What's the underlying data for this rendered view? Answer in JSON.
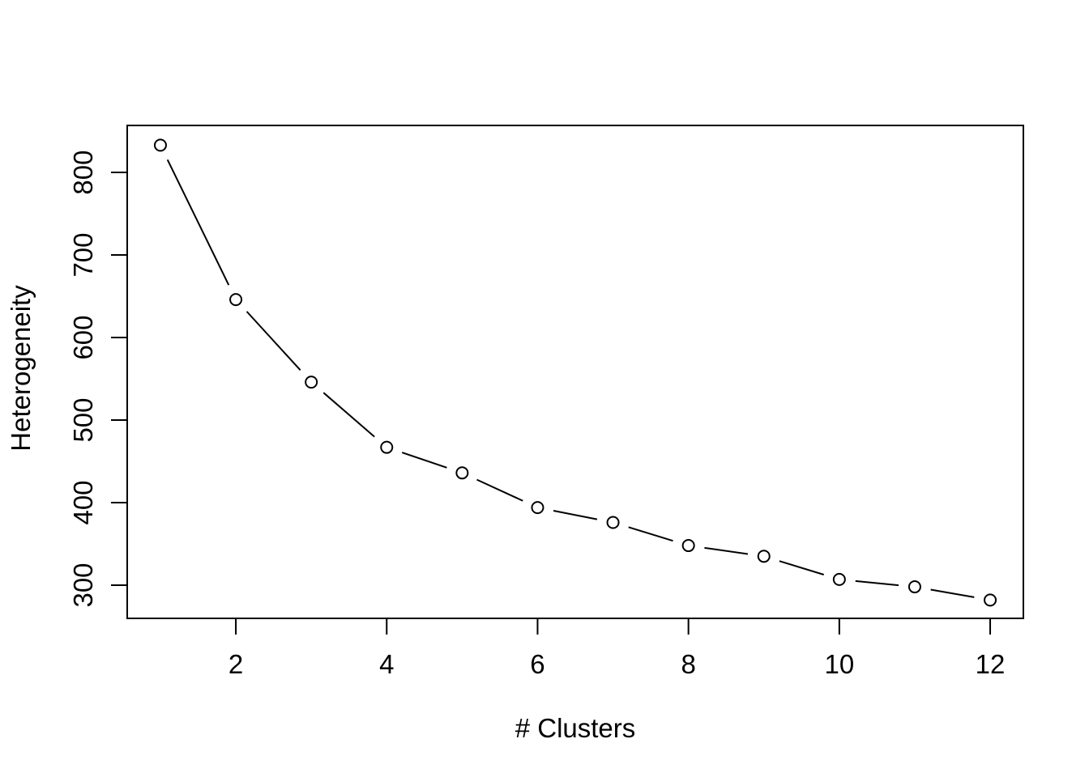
{
  "chart_data": {
    "type": "line",
    "title": "",
    "xlabel": "# Clusters",
    "ylabel": "Heterogeneity",
    "x": [
      1,
      2,
      3,
      4,
      5,
      6,
      7,
      8,
      9,
      10,
      11,
      12
    ],
    "y": [
      833,
      646,
      546,
      467,
      436,
      394,
      376,
      348,
      335,
      307,
      298,
      282
    ],
    "series": [
      {
        "name": "heterogeneity",
        "values": [
          833,
          646,
          546,
          467,
          436,
          394,
          376,
          348,
          335,
          307,
          298,
          282
        ]
      }
    ],
    "xticks": [
      2,
      4,
      6,
      8,
      10,
      12
    ],
    "yticks": [
      300,
      400,
      500,
      600,
      700,
      800
    ],
    "xlim": [
      0.56,
      12.44
    ],
    "ylim": [
      259.8,
      856.9
    ],
    "grid": false,
    "legend": "none",
    "marker": "open-circle",
    "line_style": "solid-with-gaps",
    "colors": {
      "line": "#000000",
      "marker_stroke": "#000000",
      "marker_fill": "#ffffff",
      "axis": "#000000",
      "text": "#000000",
      "background": "#ffffff"
    }
  }
}
